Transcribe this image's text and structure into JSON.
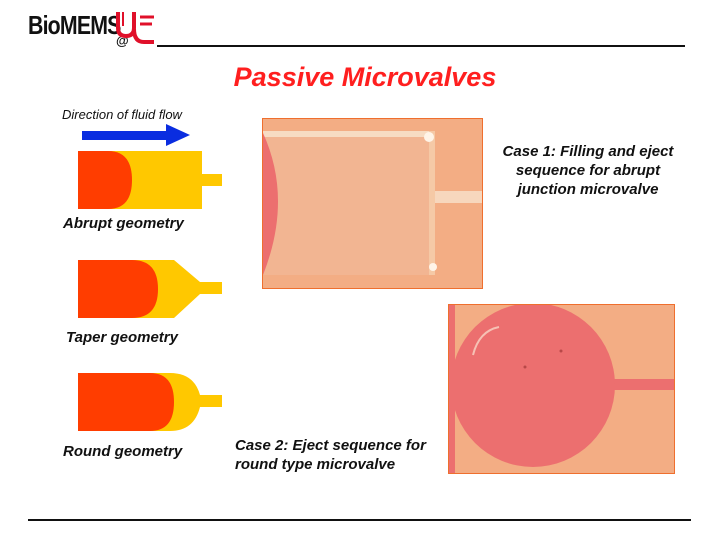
{
  "logo": {
    "text": "BioMEMS",
    "at": "@"
  },
  "title": "Passive Microvalves",
  "flow_direction_label": "Direction of fluid flow",
  "geometries": [
    {
      "label": "Abrupt geometry"
    },
    {
      "label": "Taper geometry"
    },
    {
      "label": "Round geometry"
    }
  ],
  "cases": [
    {
      "caption": "Case 1: Filling and eject sequence for abrupt junction microvalve"
    },
    {
      "caption": "Case 2: Eject sequence for round type microvalve"
    }
  ],
  "colors": {
    "title": "#ff1f1f",
    "arrow": "#0a2de0",
    "fluid": "#ff3d00",
    "channel": "#ffc800",
    "photo_background": "#f3ad84",
    "photo_fluid": "#ec6f6f"
  }
}
